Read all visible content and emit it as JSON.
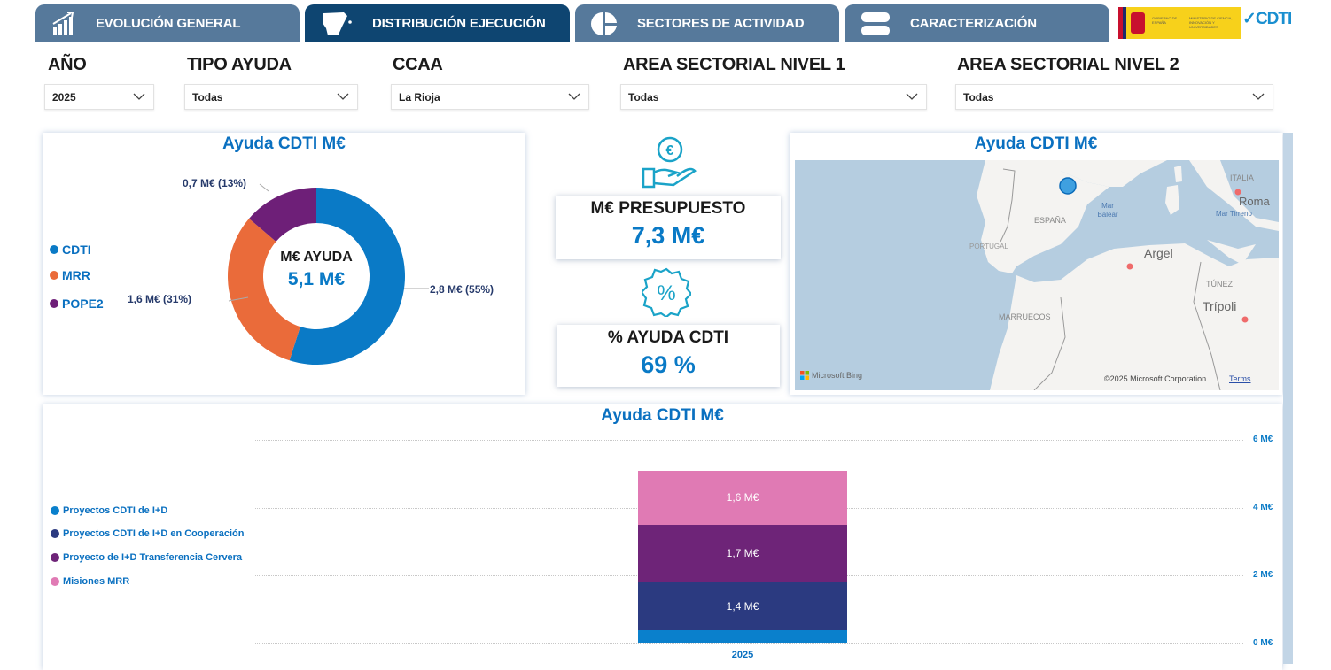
{
  "tabs": [
    {
      "label": "EVOLUCIÓN GENERAL",
      "icon": "bar-chart-growth-icon"
    },
    {
      "label": "DISTRIBUCIÓN EJECUCIÓN",
      "icon": "spain-map-icon",
      "active": true
    },
    {
      "label": "SECTORES DE ACTIVIDAD",
      "icon": "pie-chart-icon"
    },
    {
      "label": "CARACTERIZACIÓN",
      "icon": "stacked-bars-icon"
    }
  ],
  "logos": {
    "gobierno": "GOBIERNO DE ESPAÑA",
    "ministerio": "MINISTERIO DE CIENCIA, INNOVACIÓN Y UNIVERSIDADES",
    "cdti": "CDTI"
  },
  "filters": [
    {
      "label": "AÑO",
      "value": "2025"
    },
    {
      "label": "TIPO AYUDA",
      "value": "Todas"
    },
    {
      "label": "CCAA",
      "value": "La Rioja"
    },
    {
      "label": "AREA SECTORIAL NIVEL 1",
      "value": "Todas"
    },
    {
      "label": "AREA SECTORIAL NIVEL 2",
      "value": "Todas"
    }
  ],
  "donut": {
    "title": "Ayuda CDTI M€",
    "center_label": "M€ AYUDA",
    "center_value": "5,1 M€",
    "legend": [
      {
        "name": "CDTI",
        "color": "#0a7ac6"
      },
      {
        "name": "MRR",
        "color": "#ea6b3a"
      },
      {
        "name": "POPE2",
        "color": "#6e1f78"
      }
    ],
    "slices": [
      {
        "name": "CDTI",
        "value": 2.8,
        "pct": 55,
        "label": "2,8 M€ (55%)"
      },
      {
        "name": "MRR",
        "value": 1.6,
        "pct": 31,
        "label": "1,6 M€ (31%)"
      },
      {
        "name": "POPE2",
        "value": 0.7,
        "pct": 13,
        "label": "0,7 M€ (13%)"
      }
    ]
  },
  "kpis": [
    {
      "label": "M€ PRESUPUESTO",
      "value": "7,3 M€",
      "icon": "euro-coin-hand-icon"
    },
    {
      "label": "% AYUDA CDTI",
      "value": "69 %",
      "icon": "percent-badge-icon"
    }
  ],
  "map": {
    "title": "Ayuda CDTI M€",
    "labels": {
      "espana": "ESPAÑA",
      "portugal": "PORTUGAL",
      "marruecos": "MARRUECOS",
      "italia": "ITALIA",
      "roma": "Roma",
      "argel": "Argel",
      "tunez": "TÚNEZ",
      "tripoli": "Trípoli",
      "mar_balear": "Mar Balear",
      "mar_tirreno": "Mar Tirreno"
    },
    "attribution": "Microsoft Bing",
    "copyright": "©2025 Microsoft Corporation",
    "terms": "Terms",
    "marker_color": "#3fa0e0"
  },
  "chart_data": {
    "type": "bar",
    "stacked": true,
    "title": "Ayuda CDTI M€",
    "categories": [
      "2025"
    ],
    "ylim": [
      0,
      6
    ],
    "yticks": [
      "0 M€",
      "2 M€",
      "4 M€",
      "6 M€"
    ],
    "grid": true,
    "legend_position": "left",
    "series": [
      {
        "name": "Proyectos CDTI de I+D",
        "values": [
          0.4
        ],
        "color": "#0a80cc",
        "label": ""
      },
      {
        "name": "Proyectos CDTI de I+D en Cooperación",
        "values": [
          1.4
        ],
        "color": "#2b3a80",
        "label": "1,4 M€"
      },
      {
        "name": "Proyecto de I+D Transferencia Cervera",
        "values": [
          1.7
        ],
        "color": "#6e2478",
        "label": "1,7 M€"
      },
      {
        "name": "Misiones MRR",
        "values": [
          1.6
        ],
        "color": "#e07ab4",
        "label": "1,6 M€"
      }
    ]
  }
}
